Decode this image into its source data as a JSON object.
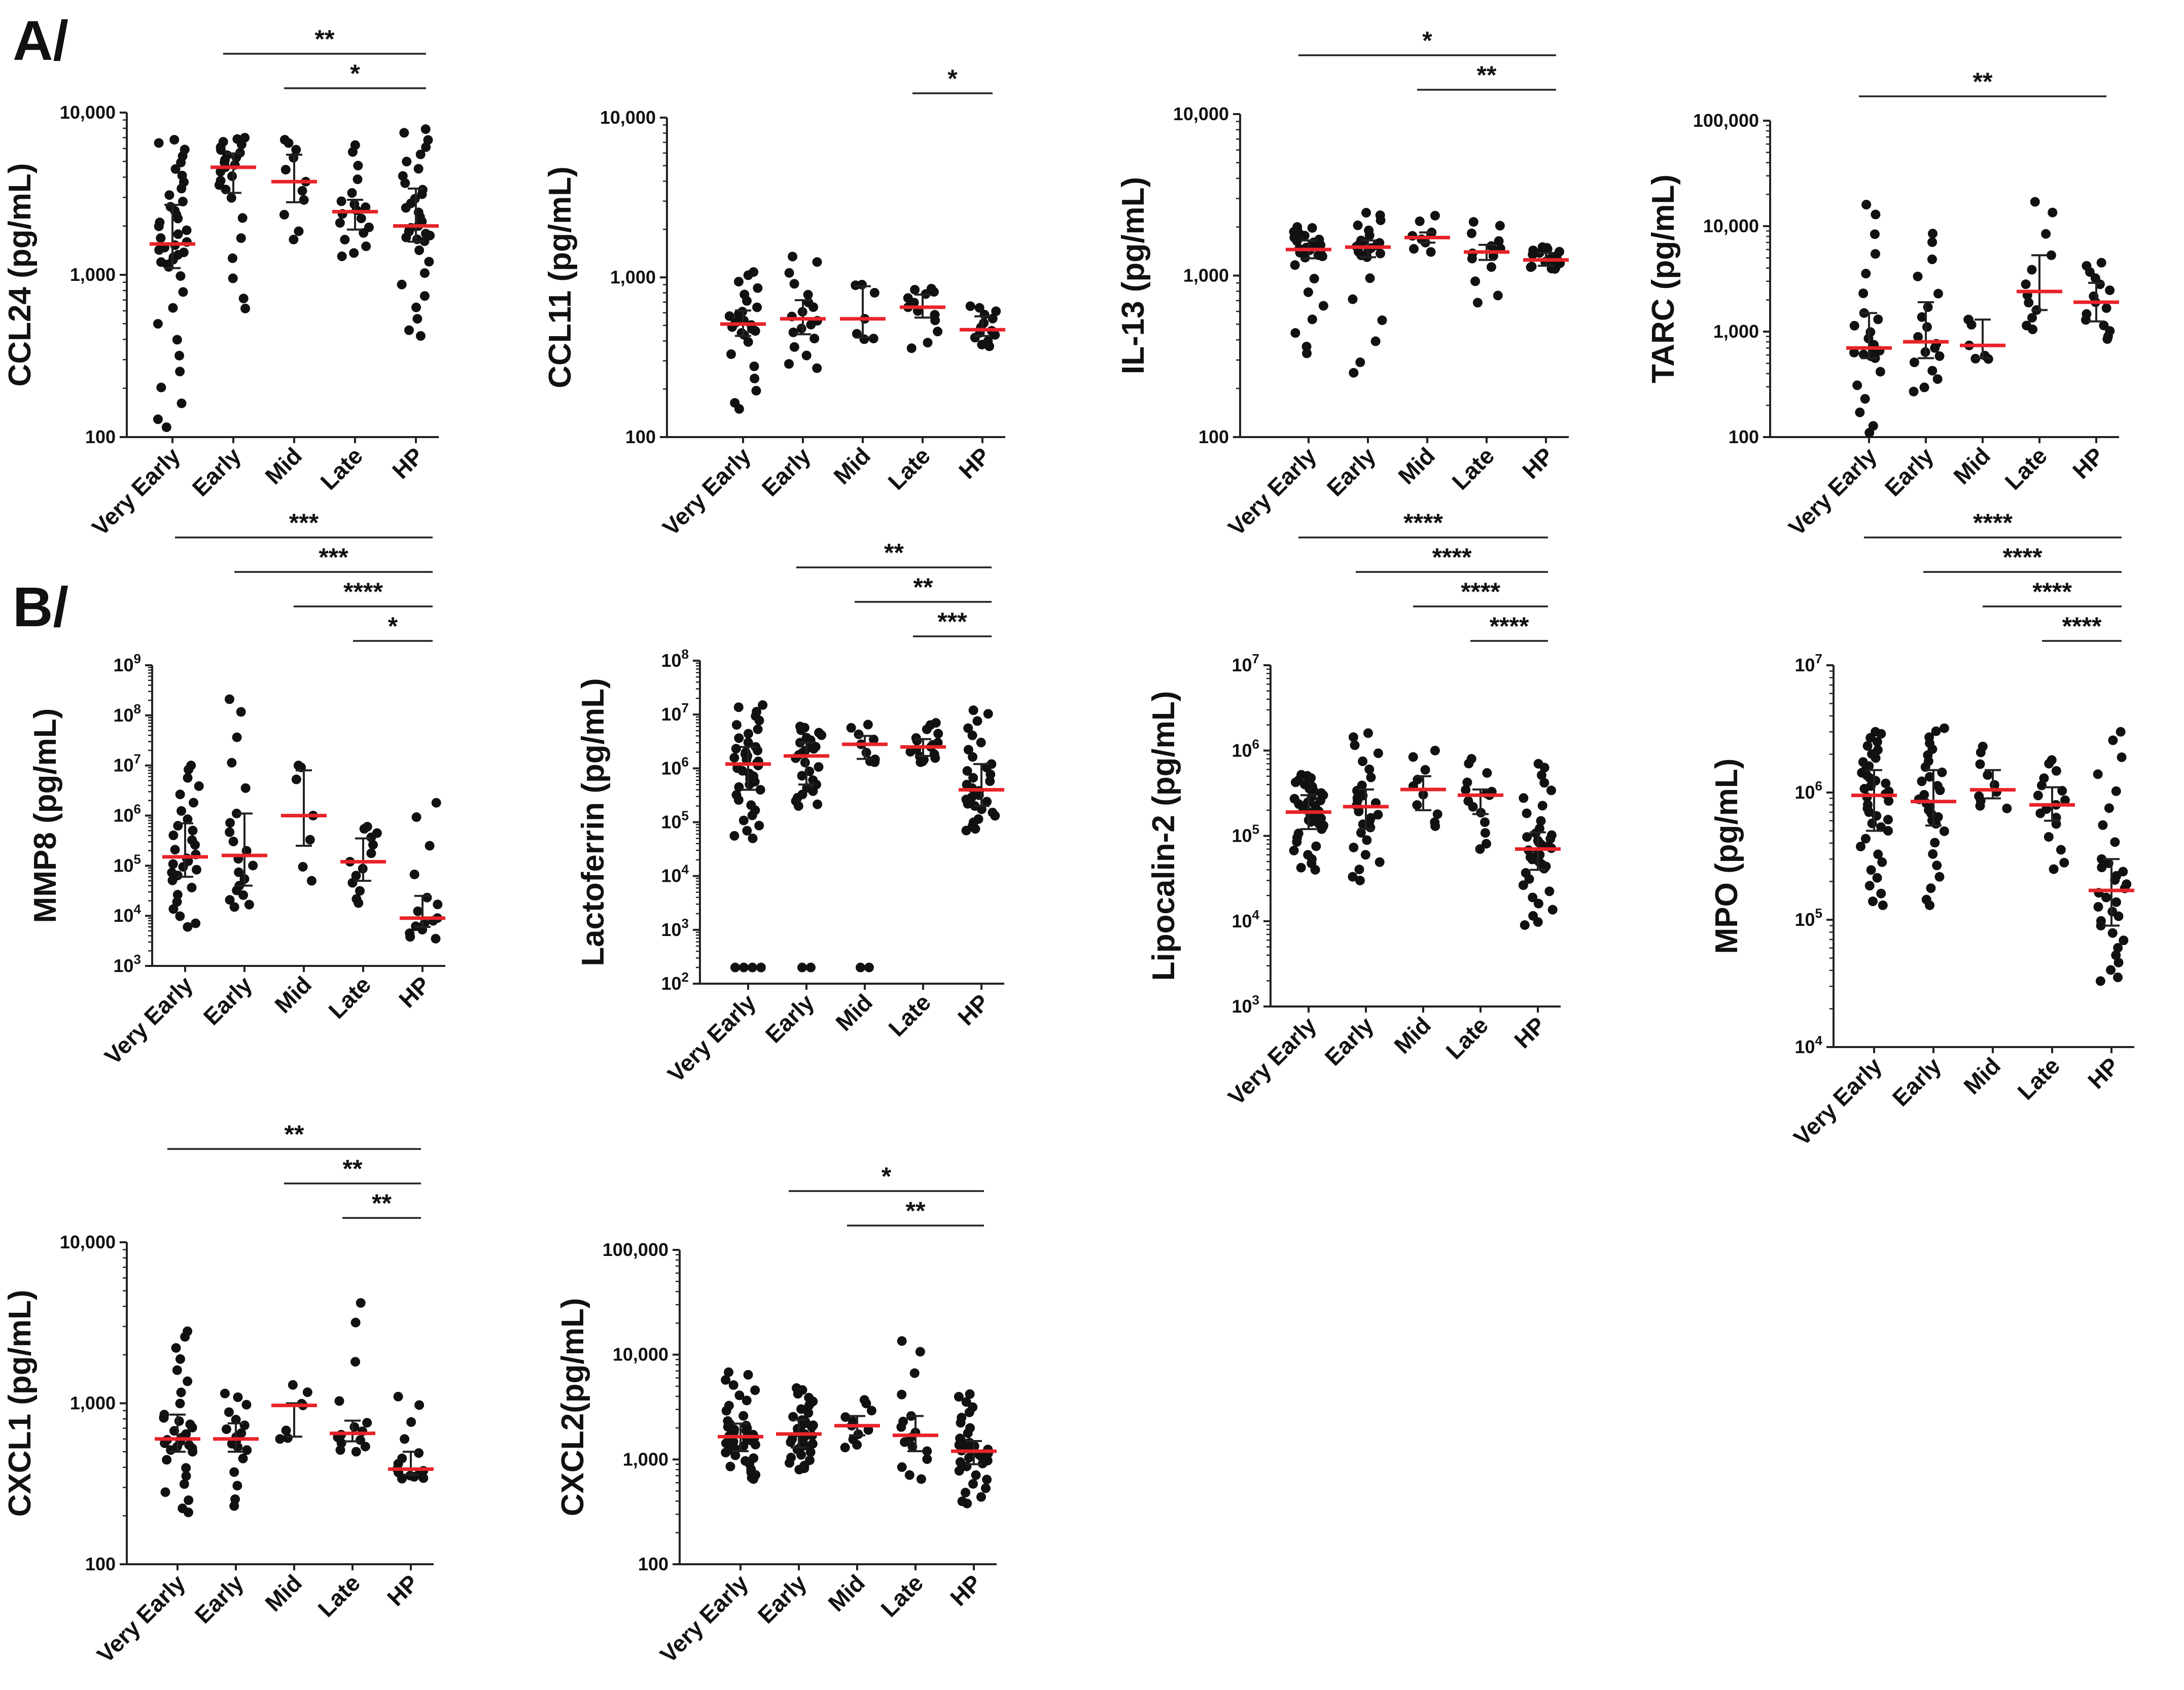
{
  "panel_labels": [
    "A/",
    "B/"
  ],
  "colors": {
    "dot": "#111111",
    "median": "#e8232a",
    "axis": "#222222"
  },
  "chart_data": [
    {
      "id": "ccl24",
      "type": "scatter",
      "panel": "A/",
      "ylabel": "CCL24 (pg/mL)",
      "yscale": "log",
      "ylim": [
        100,
        10000
      ],
      "yticks": [
        {
          "value": 100,
          "label": "100"
        },
        {
          "value": 1000,
          "label": "1,000"
        },
        {
          "value": 10000,
          "label": "10,000"
        }
      ],
      "categories": [
        "Very Early",
        "Early",
        "Mid",
        "Late",
        "HP"
      ],
      "groups": [
        {
          "category": "Very Early",
          "median": 1550,
          "q1": 1100,
          "q3": 2700,
          "n": 42,
          "min": 115,
          "max": 6800
        },
        {
          "category": "Early",
          "median": 4600,
          "q1": 3200,
          "q3": 5600,
          "n": 25,
          "min": 620,
          "max": 7000
        },
        {
          "category": "Mid",
          "median": 3750,
          "q1": 2800,
          "q3": 5500,
          "n": 11,
          "min": 1650,
          "max": 6800
        },
        {
          "category": "Late",
          "median": 2450,
          "q1": 1900,
          "q3": 2900,
          "n": 18,
          "min": 1300,
          "max": 6300
        },
        {
          "category": "HP",
          "median": 2000,
          "q1": 1600,
          "q3": 3400,
          "n": 35,
          "min": 420,
          "max": 7900
        }
      ],
      "comparisons": [
        {
          "from": "Early",
          "to": "HP",
          "label": "**"
        },
        {
          "from": "Mid",
          "to": "HP",
          "label": "*"
        }
      ]
    },
    {
      "id": "ccl11",
      "type": "scatter",
      "panel": "A/",
      "ylabel": "CCL11 (pg/mL)",
      "yscale": "log",
      "ylim": [
        100,
        10000
      ],
      "yticks": [
        {
          "value": 100,
          "label": "100"
        },
        {
          "value": 1000,
          "label": "1,000"
        },
        {
          "value": 10000,
          "label": "10,000"
        }
      ],
      "categories": [
        "Very Early",
        "Early",
        "Mid",
        "Late",
        "HP"
      ],
      "groups": [
        {
          "category": "Very Early",
          "median": 510,
          "q1": 430,
          "q3": 620,
          "n": 26,
          "min": 150,
          "max": 1080
        },
        {
          "category": "Early",
          "median": 550,
          "q1": 440,
          "q3": 720,
          "n": 18,
          "min": 270,
          "max": 1350
        },
        {
          "category": "Mid",
          "median": 550,
          "q1": 420,
          "q3": 880,
          "n": 7,
          "min": 410,
          "max": 900
        },
        {
          "category": "Late",
          "median": 650,
          "q1": 560,
          "q3": 780,
          "n": 13,
          "min": 360,
          "max": 850
        },
        {
          "category": "HP",
          "median": 470,
          "q1": 430,
          "q3": 570,
          "n": 14,
          "min": 370,
          "max": 660
        }
      ],
      "comparisons": [
        {
          "from": "Late",
          "to": "HP",
          "label": "*"
        }
      ]
    },
    {
      "id": "il13",
      "type": "scatter",
      "panel": "A/",
      "ylabel": "IL-13 (pg/mL)",
      "yscale": "log",
      "ylim": [
        100,
        10000
      ],
      "yticks": [
        {
          "value": 100,
          "label": "100"
        },
        {
          "value": 1000,
          "label": "1,000"
        },
        {
          "value": 10000,
          "label": "10,000"
        }
      ],
      "categories": [
        "Very Early",
        "Early",
        "Mid",
        "Late",
        "HP"
      ],
      "groups": [
        {
          "category": "Very Early",
          "median": 1450,
          "q1": 1280,
          "q3": 1650,
          "n": 30,
          "min": 330,
          "max": 2000
        },
        {
          "category": "Early",
          "median": 1500,
          "q1": 1300,
          "q3": 1650,
          "n": 24,
          "min": 250,
          "max": 2450
        },
        {
          "category": "Mid",
          "median": 1720,
          "q1": 1600,
          "q3": 1850,
          "n": 8,
          "min": 1400,
          "max": 2350
        },
        {
          "category": "Late",
          "median": 1400,
          "q1": 1250,
          "q3": 1550,
          "n": 14,
          "min": 680,
          "max": 2150
        },
        {
          "category": "HP",
          "median": 1250,
          "q1": 1150,
          "q3": 1380,
          "n": 20,
          "min": 1100,
          "max": 1500
        }
      ],
      "comparisons": [
        {
          "from": "Very Early",
          "to": "HP",
          "label": "*"
        },
        {
          "from": "Mid",
          "to": "HP",
          "label": "**"
        }
      ]
    },
    {
      "id": "tarc",
      "type": "scatter",
      "panel": "A/",
      "ylabel": "TARC (pg/mL)",
      "yscale": "log",
      "ylim": [
        100,
        100000
      ],
      "yticks": [
        {
          "value": 100,
          "label": "100"
        },
        {
          "value": 1000,
          "label": "1,000"
        },
        {
          "value": 10000,
          "label": "10,000"
        },
        {
          "value": 100000,
          "label": "100,000"
        }
      ],
      "categories": [
        "Very Early",
        "Early",
        "Mid",
        "Late",
        "HP"
      ],
      "groups": [
        {
          "category": "Very Early",
          "median": 700,
          "q1": 560,
          "q3": 1500,
          "n": 24,
          "min": 110,
          "max": 16000
        },
        {
          "category": "Early",
          "median": 800,
          "q1": 560,
          "q3": 1900,
          "n": 18,
          "min": 270,
          "max": 8500
        },
        {
          "category": "Mid",
          "median": 740,
          "q1": 560,
          "q3": 1300,
          "n": 7,
          "min": 550,
          "max": 1300
        },
        {
          "category": "Late",
          "median": 2400,
          "q1": 1600,
          "q3": 5300,
          "n": 12,
          "min": 1050,
          "max": 17000
        },
        {
          "category": "HP",
          "median": 1900,
          "q1": 1250,
          "q3": 2900,
          "n": 15,
          "min": 850,
          "max": 4500
        }
      ],
      "comparisons": [
        {
          "from": "Very Early",
          "to": "HP",
          "label": "**"
        }
      ]
    },
    {
      "id": "mmp8",
      "type": "scatter",
      "panel": "B/",
      "ylabel": "MMP8 (pg/mL)",
      "yscale": "log",
      "ylim": [
        1000,
        1000000000
      ],
      "yticks": [
        {
          "value": 1000,
          "label": "10",
          "exp": "3"
        },
        {
          "value": 10000,
          "label": "10",
          "exp": "4"
        },
        {
          "value": 100000,
          "label": "10",
          "exp": "5"
        },
        {
          "value": 1000000,
          "label": "10",
          "exp": "6"
        },
        {
          "value": 10000000,
          "label": "10",
          "exp": "7"
        },
        {
          "value": 100000000,
          "label": "10",
          "exp": "8"
        },
        {
          "value": 1000000000,
          "label": "10",
          "exp": "9"
        }
      ],
      "categories": [
        "Very Early",
        "Early",
        "Mid",
        "Late",
        "HP"
      ],
      "groups": [
        {
          "category": "Very Early",
          "median": 150000,
          "q1": 60000,
          "q3": 700000,
          "n": 30,
          "min": 6000,
          "max": 10000000
        },
        {
          "category": "Early",
          "median": 160000,
          "q1": 40000,
          "q3": 1100000,
          "n": 20,
          "min": 15000,
          "max": 210000000
        },
        {
          "category": "Mid",
          "median": 1000000,
          "q1": 250000,
          "q3": 8000000,
          "n": 7,
          "min": 50000,
          "max": 10000000
        },
        {
          "category": "Late",
          "median": 120000,
          "q1": 50000,
          "q3": 350000,
          "n": 13,
          "min": 18000,
          "max": 600000
        },
        {
          "category": "HP",
          "median": 9000,
          "q1": 6000,
          "q3": 25000,
          "n": 15,
          "min": 3500,
          "max": 1800000
        }
      ],
      "comparisons": [
        {
          "from": "Very Early",
          "to": "HP",
          "label": "***"
        },
        {
          "from": "Early",
          "to": "HP",
          "label": "***"
        },
        {
          "from": "Mid",
          "to": "HP",
          "label": "****"
        },
        {
          "from": "Late",
          "to": "HP",
          "label": "*"
        }
      ]
    },
    {
      "id": "lactoferrin",
      "type": "scatter",
      "panel": "B/",
      "ylabel": "Lactoferrin (pg/mL)",
      "yscale": "log",
      "ylim": [
        100,
        100000000
      ],
      "yticks": [
        {
          "value": 100,
          "label": "10",
          "exp": "2"
        },
        {
          "value": 1000,
          "label": "10",
          "exp": "3"
        },
        {
          "value": 10000,
          "label": "10",
          "exp": "4"
        },
        {
          "value": 100000,
          "label": "10",
          "exp": "5"
        },
        {
          "value": 1000000,
          "label": "10",
          "exp": "6"
        },
        {
          "value": 10000000,
          "label": "10",
          "exp": "7"
        },
        {
          "value": 100000000,
          "label": "10",
          "exp": "8"
        }
      ],
      "categories": [
        "Very Early",
        "Early",
        "Mid",
        "Late",
        "HP"
      ],
      "groups": [
        {
          "category": "Very Early",
          "median": 1200000,
          "q1": 400000,
          "q3": 2500000,
          "n": 40,
          "min": 50000,
          "max": 15000000,
          "low_cluster": 4
        },
        {
          "category": "Early",
          "median": 1700000,
          "q1": 500000,
          "q3": 3000000,
          "n": 28,
          "min": 200000,
          "max": 6000000,
          "low_cluster": 2
        },
        {
          "category": "Mid",
          "median": 2800000,
          "q1": 1500000,
          "q3": 4000000,
          "n": 9,
          "min": 1300000,
          "max": 6500000,
          "low_cluster": 2
        },
        {
          "category": "Late",
          "median": 2500000,
          "q1": 1700000,
          "q3": 3500000,
          "n": 17,
          "min": 1300000,
          "max": 7000000
        },
        {
          "category": "HP",
          "median": 400000,
          "q1": 200000,
          "q3": 1200000,
          "n": 32,
          "min": 70000,
          "max": 12000000
        }
      ],
      "low_value": 200,
      "comparisons": [
        {
          "from": "Early",
          "to": "HP",
          "label": "**"
        },
        {
          "from": "Mid",
          "to": "HP",
          "label": "**"
        },
        {
          "from": "Late",
          "to": "HP",
          "label": "***"
        }
      ]
    },
    {
      "id": "lipocalin2",
      "type": "scatter",
      "panel": "B/",
      "ylabel": "Lipocalin-2 (pg/mL)",
      "yscale": "log",
      "ylim": [
        1000,
        10000000
      ],
      "yticks": [
        {
          "value": 1000,
          "label": "10",
          "exp": "3"
        },
        {
          "value": 10000,
          "label": "10",
          "exp": "4"
        },
        {
          "value": 100000,
          "label": "10",
          "exp": "5"
        },
        {
          "value": 1000000,
          "label": "10",
          "exp": "6"
        },
        {
          "value": 10000000,
          "label": "10",
          "exp": "7"
        }
      ],
      "categories": [
        "Very Early",
        "Early",
        "Mid",
        "Late",
        "HP"
      ],
      "groups": [
        {
          "category": "Very Early",
          "median": 190000,
          "q1": 120000,
          "q3": 300000,
          "n": 40,
          "min": 40000,
          "max": 520000
        },
        {
          "category": "Early",
          "median": 220000,
          "q1": 120000,
          "q3": 350000,
          "n": 30,
          "min": 30000,
          "max": 1600000
        },
        {
          "category": "Mid",
          "median": 350000,
          "q1": 200000,
          "q3": 500000,
          "n": 10,
          "min": 130000,
          "max": 1000000
        },
        {
          "category": "Late",
          "median": 300000,
          "q1": 180000,
          "q3": 350000,
          "n": 15,
          "min": 70000,
          "max": 800000
        },
        {
          "category": "HP",
          "median": 70000,
          "q1": 40000,
          "q3": 110000,
          "n": 38,
          "min": 9000,
          "max": 700000
        }
      ],
      "comparisons": [
        {
          "from": "Very Early",
          "to": "HP",
          "label": "****"
        },
        {
          "from": "Early",
          "to": "HP",
          "label": "****"
        },
        {
          "from": "Mid",
          "to": "HP",
          "label": "****"
        },
        {
          "from": "Late",
          "to": "HP",
          "label": "****"
        }
      ]
    },
    {
      "id": "mpo",
      "type": "scatter",
      "panel": "B/",
      "ylabel": "MPO (pg/mL)",
      "yscale": "log",
      "ylim": [
        10000,
        10000000
      ],
      "yticks": [
        {
          "value": 10000,
          "label": "10",
          "exp": "4"
        },
        {
          "value": 100000,
          "label": "10",
          "exp": "5"
        },
        {
          "value": 1000000,
          "label": "10",
          "exp": "6"
        },
        {
          "value": 10000000,
          "label": "10",
          "exp": "7"
        }
      ],
      "categories": [
        "Very Early",
        "Early",
        "Mid",
        "Late",
        "HP"
      ],
      "groups": [
        {
          "category": "Very Early",
          "median": 950000,
          "q1": 500000,
          "q3": 1500000,
          "n": 40,
          "min": 130000,
          "max": 3000000
        },
        {
          "category": "Early",
          "median": 850000,
          "q1": 550000,
          "q3": 1500000,
          "n": 30,
          "min": 130000,
          "max": 3200000
        },
        {
          "category": "Mid",
          "median": 1050000,
          "q1": 900000,
          "q3": 1500000,
          "n": 10,
          "min": 750000,
          "max": 2300000
        },
        {
          "category": "Late",
          "median": 800000,
          "q1": 600000,
          "q3": 1100000,
          "n": 17,
          "min": 250000,
          "max": 1800000
        },
        {
          "category": "HP",
          "median": 170000,
          "q1": 90000,
          "q3": 300000,
          "n": 32,
          "min": 33000,
          "max": 3000000
        }
      ],
      "comparisons": [
        {
          "from": "Very Early",
          "to": "HP",
          "label": "****"
        },
        {
          "from": "Early",
          "to": "HP",
          "label": "****"
        },
        {
          "from": "Mid",
          "to": "HP",
          "label": "****"
        },
        {
          "from": "Late",
          "to": "HP",
          "label": "****"
        }
      ]
    },
    {
      "id": "cxcl1",
      "type": "scatter",
      "panel": "",
      "ylabel": "CXCL1 (pg/mL)",
      "yscale": "log",
      "ylim": [
        100,
        10000
      ],
      "yticks": [
        {
          "value": 100,
          "label": "100"
        },
        {
          "value": 1000,
          "label": "1,000"
        },
        {
          "value": 10000,
          "label": "10,000"
        }
      ],
      "categories": [
        "Very Early",
        "Early",
        "Mid",
        "Late",
        "HP"
      ],
      "groups": [
        {
          "category": "Very Early",
          "median": 600,
          "q1": 500,
          "q3": 850,
          "n": 32,
          "min": 210,
          "max": 2800
        },
        {
          "category": "Early",
          "median": 600,
          "q1": 500,
          "q3": 750,
          "n": 18,
          "min": 230,
          "max": 1150
        },
        {
          "category": "Mid",
          "median": 970,
          "q1": 620,
          "q3": 1000,
          "n": 7,
          "min": 600,
          "max": 1300
        },
        {
          "category": "Late",
          "median": 650,
          "q1": 580,
          "q3": 780,
          "n": 14,
          "min": 500,
          "max": 4200
        },
        {
          "category": "HP",
          "median": 390,
          "q1": 360,
          "q3": 500,
          "n": 15,
          "min": 340,
          "max": 1100
        }
      ],
      "comparisons": [
        {
          "from": "Very Early",
          "to": "HP",
          "label": "**"
        },
        {
          "from": "Mid",
          "to": "HP",
          "label": "**"
        },
        {
          "from": "Late",
          "to": "HP",
          "label": "**"
        }
      ]
    },
    {
      "id": "cxcl2",
      "type": "scatter",
      "panel": "",
      "ylabel": "CXCL2(pg/mL)",
      "yscale": "log",
      "ylim": [
        100,
        100000
      ],
      "yticks": [
        {
          "value": 100,
          "label": "100"
        },
        {
          "value": 1000,
          "label": "1,000"
        },
        {
          "value": 10000,
          "label": "10,000"
        },
        {
          "value": 100000,
          "label": "100,000"
        }
      ],
      "categories": [
        "Very Early",
        "Early",
        "Mid",
        "Late",
        "HP"
      ],
      "groups": [
        {
          "category": "Very Early",
          "median": 1650,
          "q1": 1200,
          "q3": 2200,
          "n": 42,
          "min": 650,
          "max": 6800
        },
        {
          "category": "Early",
          "median": 1750,
          "q1": 1300,
          "q3": 2400,
          "n": 35,
          "min": 800,
          "max": 4800
        },
        {
          "category": "Mid",
          "median": 2100,
          "q1": 1700,
          "q3": 2600,
          "n": 11,
          "min": 1300,
          "max": 3700
        },
        {
          "category": "Late",
          "median": 1700,
          "q1": 1200,
          "q3": 2600,
          "n": 16,
          "min": 650,
          "max": 13500
        },
        {
          "category": "HP",
          "median": 1200,
          "q1": 900,
          "q3": 1500,
          "n": 38,
          "min": 380,
          "max": 4200
        }
      ],
      "comparisons": [
        {
          "from": "Early",
          "to": "HP",
          "label": "*"
        },
        {
          "from": "Mid",
          "to": "HP",
          "label": "**"
        }
      ]
    }
  ]
}
